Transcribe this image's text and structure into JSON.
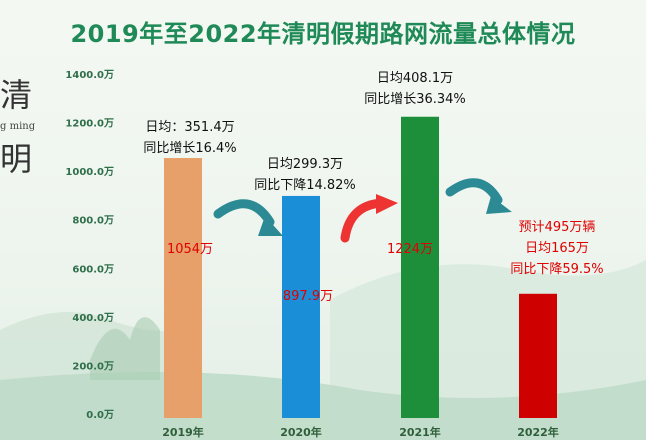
{
  "title": "2019年至2022年清明假期路网流量总体情况",
  "decoration": {
    "char1": "清",
    "char2": "明",
    "small_text": "g ming"
  },
  "chart_data": {
    "type": "bar",
    "categories": [
      "2019年",
      "2020年",
      "2021年",
      "2022年"
    ],
    "values": [
      1054,
      897.9,
      1224,
      495
    ],
    "ylim": [
      0,
      1400
    ],
    "yticks": [
      "0.0万",
      "200.0万",
      "400.0万",
      "600.0万",
      "800.0万",
      "1000.0万",
      "1200.0万",
      "1400.0万"
    ],
    "bar_colors": [
      "#e8a06b",
      "#1a8fd8",
      "#1d8f3a",
      "#cf0000"
    ],
    "value_labels": [
      "1054万",
      "897.9万",
      "1224万",
      ""
    ],
    "annotations": [
      [
        "日均：351.4万",
        "同比增长16.4%"
      ],
      [
        "日均299.3万",
        "同比下降14.82%"
      ],
      [
        "日均408.1万",
        "同比增长36.34%"
      ],
      [
        "预计495万辆",
        "日均165万",
        "同比下降59.5%"
      ]
    ],
    "annotation_colors": [
      "#111111",
      "#111111",
      "#111111",
      "#e00000"
    ],
    "arrow_colors": [
      "#2b8a94",
      "#ee3333",
      "#2b8a94"
    ],
    "grid": false
  }
}
